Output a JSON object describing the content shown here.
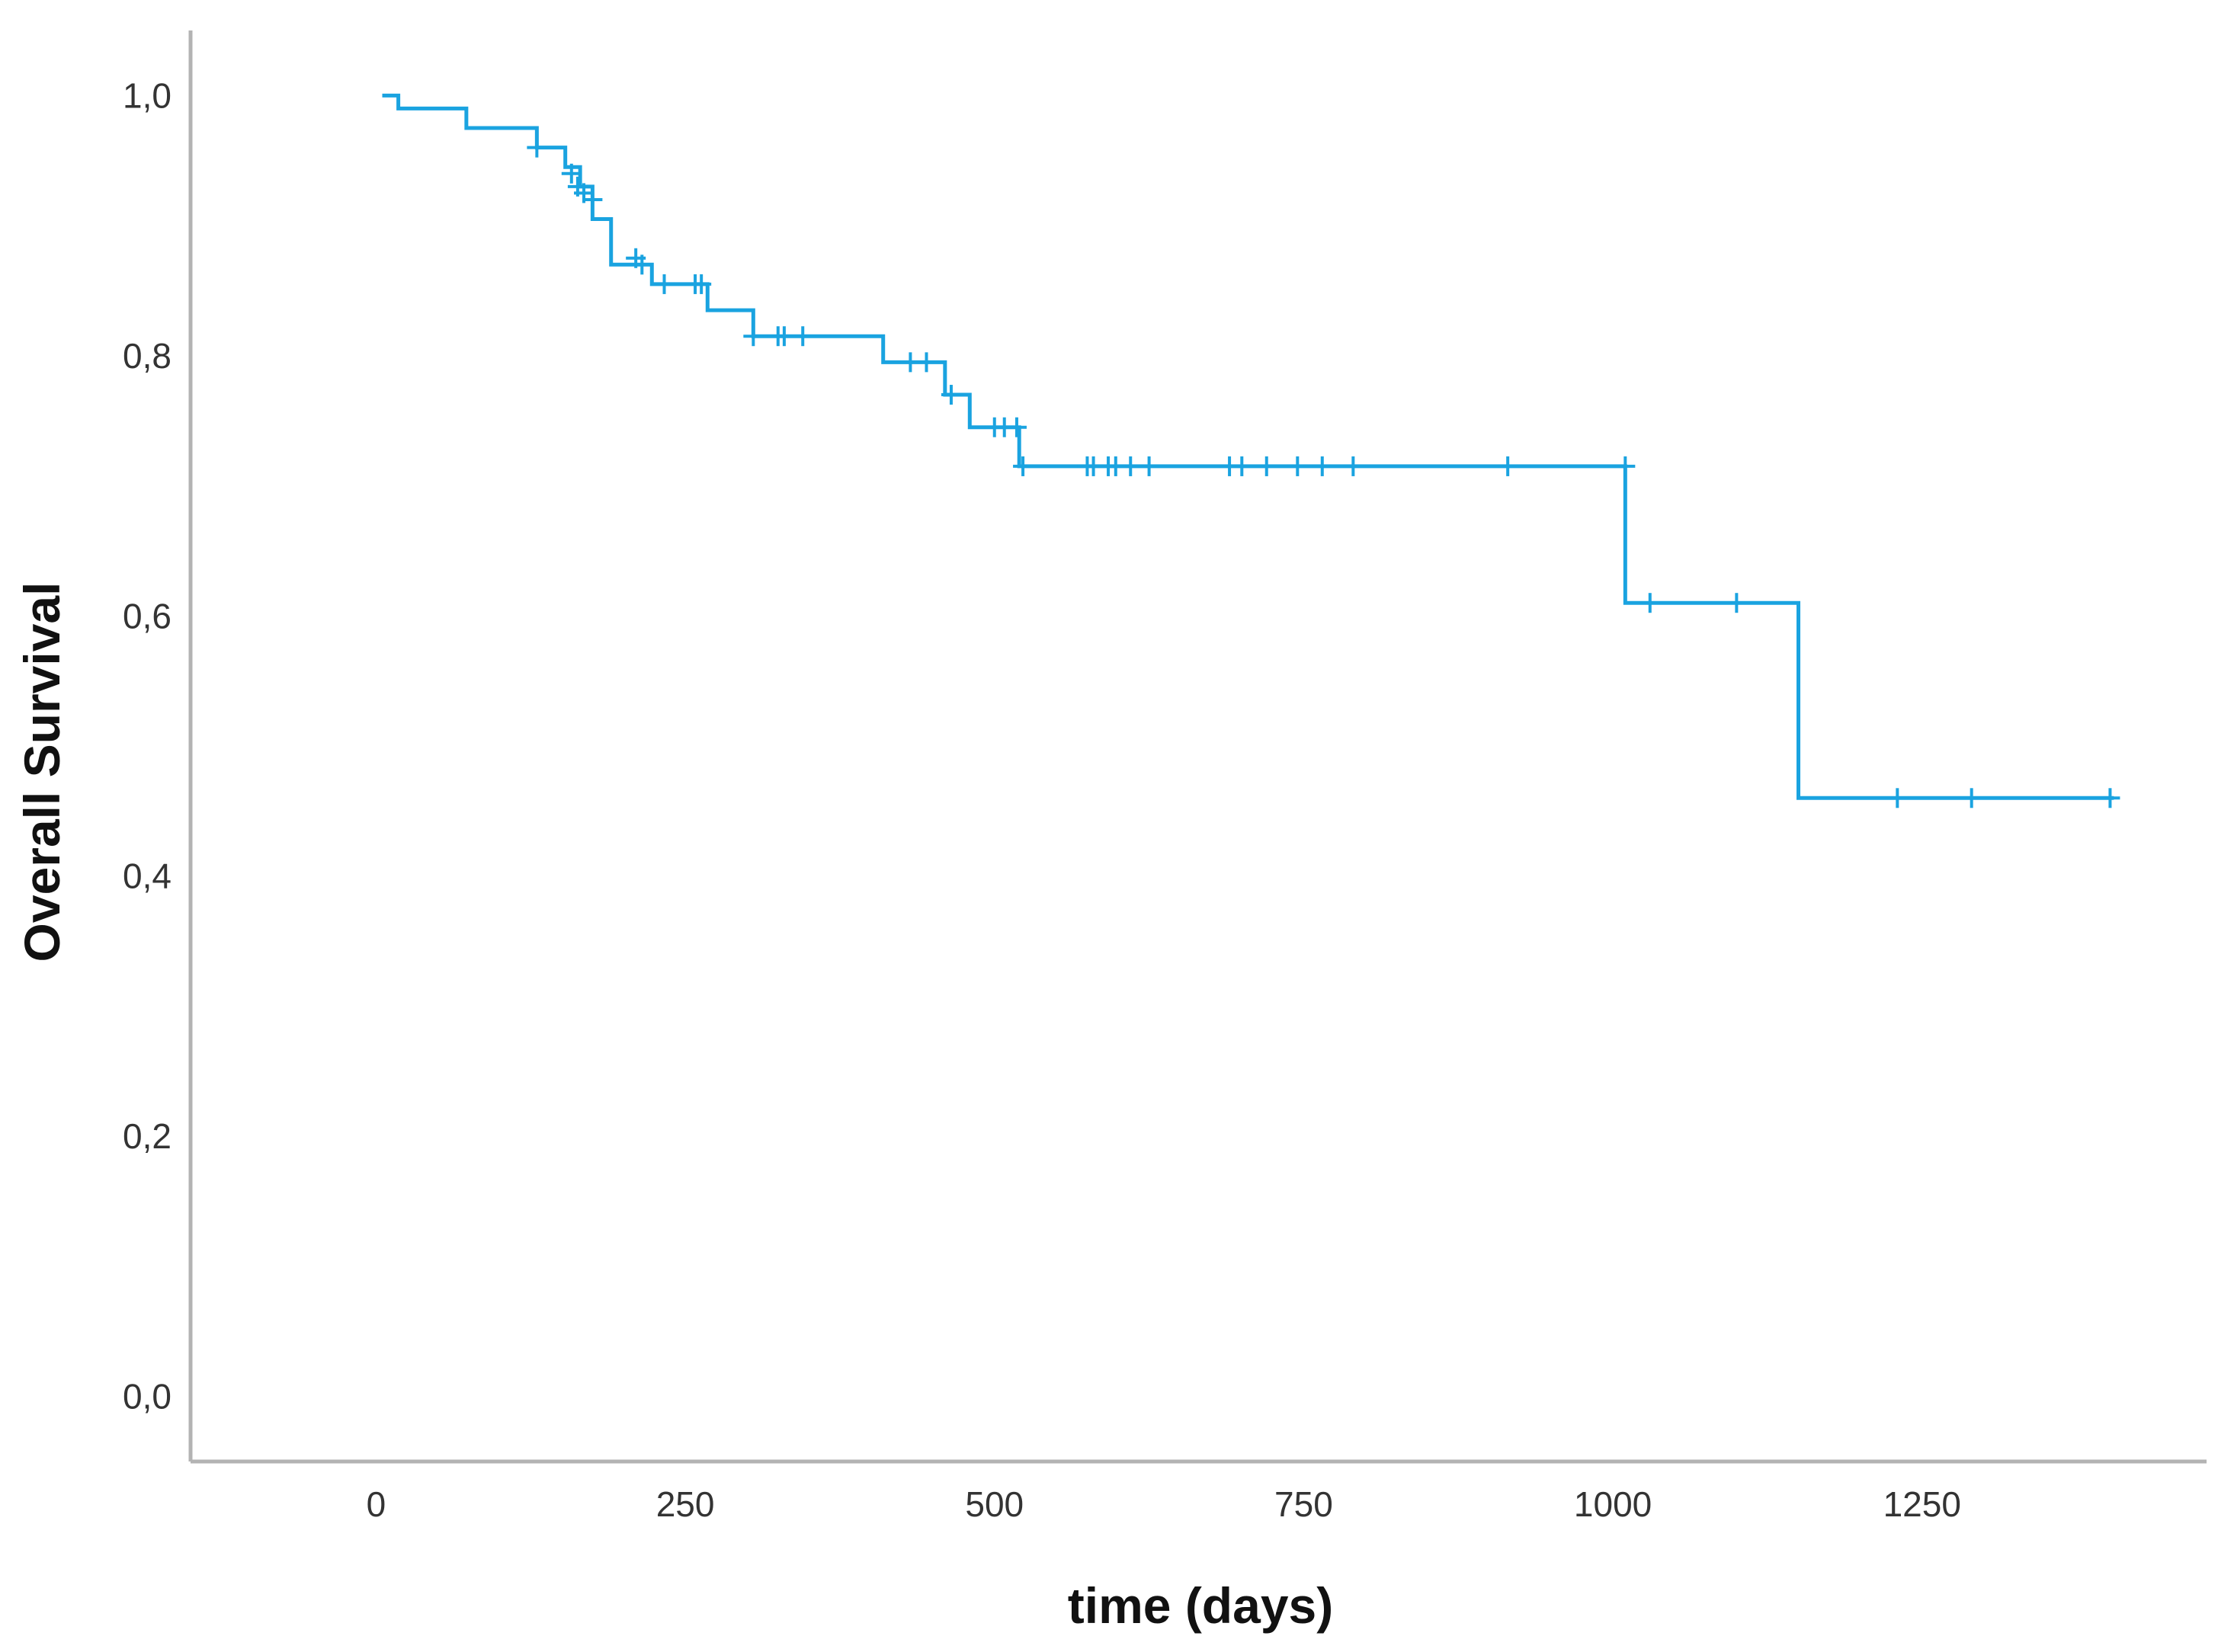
{
  "chart_data": {
    "type": "line",
    "subtype": "kaplan-meier-step",
    "title": "",
    "xlabel": "time (days)",
    "ylabel": "Overall Survival",
    "xlim": [
      -150,
      1480
    ],
    "ylim": [
      -0.05,
      1.05
    ],
    "xticks": [
      0,
      250,
      500,
      750,
      1000,
      1250
    ],
    "xtick_labels": [
      "0",
      "250",
      "500",
      "750",
      "1000",
      "1250"
    ],
    "yticks": [
      0.0,
      0.2,
      0.4,
      0.6,
      0.8,
      1.0
    ],
    "ytick_labels": [
      "0,0",
      "0,2",
      "0,4",
      "0,6",
      "0,8",
      "1,0"
    ],
    "grid": false,
    "legend": "none",
    "series": [
      {
        "color": "#1aa3e0",
        "steps": [
          [
            5,
            1.0
          ],
          [
            18,
            0.99
          ],
          [
            73,
            0.975
          ],
          [
            130,
            0.96
          ],
          [
            153,
            0.945
          ],
          [
            165,
            0.93
          ],
          [
            175,
            0.905
          ],
          [
            190,
            0.87
          ],
          [
            223,
            0.855
          ],
          [
            268,
            0.835
          ],
          [
            305,
            0.815
          ],
          [
            410,
            0.795
          ],
          [
            460,
            0.77
          ],
          [
            480,
            0.745
          ],
          [
            520,
            0.715
          ],
          [
            1010,
            0.61
          ],
          [
            1150,
            0.46
          ],
          [
            1405,
            0.46
          ]
        ],
        "censored": [
          [
            130,
            0.96
          ],
          [
            158,
            0.94
          ],
          [
            163,
            0.93
          ],
          [
            168,
            0.925
          ],
          [
            175,
            0.92
          ],
          [
            210,
            0.875
          ],
          [
            215,
            0.87
          ],
          [
            233,
            0.855
          ],
          [
            258,
            0.855
          ],
          [
            263,
            0.855
          ],
          [
            305,
            0.815
          ],
          [
            325,
            0.815
          ],
          [
            330,
            0.815
          ],
          [
            345,
            0.815
          ],
          [
            432,
            0.795
          ],
          [
            445,
            0.795
          ],
          [
            465,
            0.77
          ],
          [
            500,
            0.745
          ],
          [
            508,
            0.745
          ],
          [
            518,
            0.745
          ],
          [
            523,
            0.715
          ],
          [
            575,
            0.715
          ],
          [
            580,
            0.715
          ],
          [
            592,
            0.715
          ],
          [
            598,
            0.715
          ],
          [
            610,
            0.715
          ],
          [
            625,
            0.715
          ],
          [
            690,
            0.715
          ],
          [
            700,
            0.715
          ],
          [
            720,
            0.715
          ],
          [
            745,
            0.715
          ],
          [
            765,
            0.715
          ],
          [
            790,
            0.715
          ],
          [
            915,
            0.715
          ],
          [
            1010,
            0.715
          ],
          [
            1030,
            0.61
          ],
          [
            1100,
            0.61
          ],
          [
            1230,
            0.46
          ],
          [
            1290,
            0.46
          ],
          [
            1402,
            0.46
          ]
        ]
      }
    ]
  }
}
